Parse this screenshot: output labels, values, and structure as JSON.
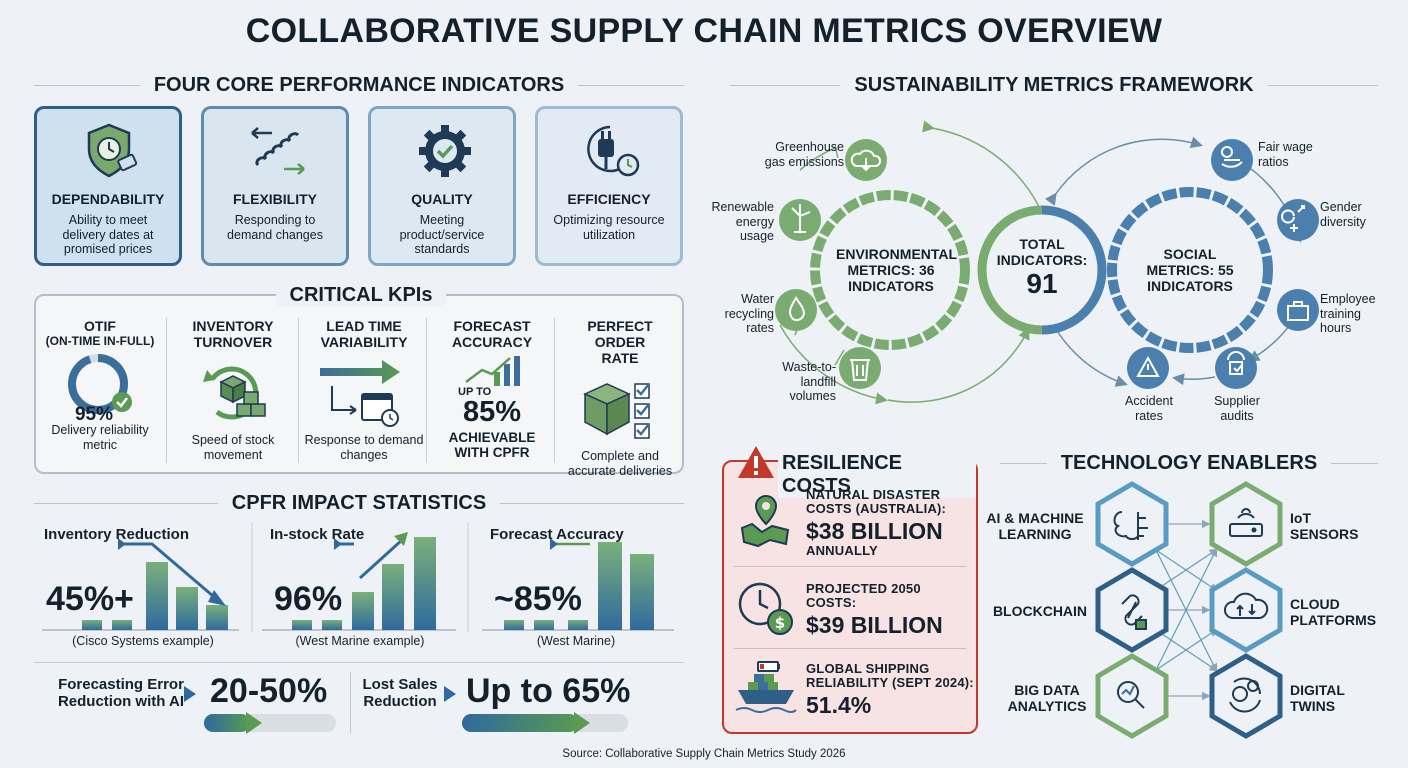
{
  "title": "COLLABORATIVE SUPPLY CHAIN METRICS OVERVIEW",
  "core": {
    "heading": "FOUR CORE PERFORMANCE INDICATORS",
    "cards": [
      {
        "title": "DEPENDABILITY",
        "desc": "Ability to meet delivery dates at promised prices",
        "icon": "shield-clock-icon"
      },
      {
        "title": "FLEXIBILITY",
        "desc": "Responding to demand changes",
        "icon": "spring-arrows-icon"
      },
      {
        "title": "QUALITY",
        "desc": "Meeting product/service standards",
        "icon": "gear-check-icon"
      },
      {
        "title": "EFFICIENCY",
        "desc": "Optimizing resource utilization",
        "icon": "plug-timer-icon"
      }
    ]
  },
  "kpis": {
    "heading": "CRITICAL KPIs",
    "items": [
      {
        "title": "OTIF",
        "subtitle": "(ON-TIME IN-FULL)",
        "value": "95%",
        "desc": "Delivery reliability metric",
        "icon": "donut-check-icon"
      },
      {
        "title": "INVENTORY TURNOVER",
        "desc": "Speed of stock movement",
        "icon": "box-cycle-icon"
      },
      {
        "title": "LEAD TIME VARIABILITY",
        "desc": "Response to demand changes",
        "icon": "arrow-calendar-icon"
      },
      {
        "title": "FORECAST ACCURACY",
        "upto": "UP TO",
        "value": "85%",
        "desc": "ACHIEVABLE WITH CPFR",
        "icon": "rising-chart-icon"
      },
      {
        "title": "PERFECT ORDER RATE",
        "desc": "Complete and accurate deliveries",
        "icon": "box-checklist-icon"
      }
    ]
  },
  "cpfr": {
    "heading": "CPFR IMPACT STATISTICS",
    "panels": [
      {
        "label": "Inventory Reduction",
        "value": "45%+",
        "caption": "(Cisco Systems example)"
      },
      {
        "label": "In-stock Rate",
        "value": "96%",
        "caption": "(West Marine example)"
      },
      {
        "label": "Forecast Accuracy",
        "value": "~85%",
        "caption": "(West Marine)"
      }
    ],
    "bottom": [
      {
        "label": "Forecasting Error Reduction with AI",
        "value": "20-50%",
        "level": 0.35
      },
      {
        "label": "Lost Sales Reduction",
        "value": "Up to 65%",
        "level": 0.7
      }
    ]
  },
  "sustain": {
    "heading": "SUSTAINABILITY METRICS FRAMEWORK",
    "env": "ENVIRONMENTAL METRICS: 36 INDICATORS",
    "total_label": "TOTAL INDICATORS:",
    "total_value": "91",
    "social": "SOCIAL METRICS: 55 INDICATORS",
    "env_items": [
      "Greenhouse gas emissions",
      "Renewable energy usage",
      "Water recycling rates",
      "Waste-to-landfill volumes"
    ],
    "soc_items": [
      "Fair wage ratios",
      "Gender diversity",
      "Employee training hours",
      "Supplier audits",
      "Accident rates"
    ],
    "colors": {
      "env": "#7aac72",
      "soc": "#4a7fae"
    }
  },
  "resilience": {
    "heading": "RESILIENCE COSTS",
    "items": [
      {
        "label": "NATURAL DISASTER COSTS (AUSTRALIA):",
        "value": "$38 BILLION",
        "suffix": "ANNUALLY",
        "icon": "map-pin-icon"
      },
      {
        "label": "PROJECTED 2050 COSTS:",
        "value": "$39 BILLION",
        "icon": "clock-money-icon"
      },
      {
        "label": "GLOBAL SHIPPING RELIABILITY (SEPT 2024):",
        "value": "51.4%",
        "icon": "ship-battery-icon"
      }
    ]
  },
  "tech": {
    "heading": "TECHNOLOGY ENABLERS",
    "left": [
      "AI & MACHINE LEARNING",
      "BLOCKCHAIN",
      "BIG DATA ANALYTICS"
    ],
    "right": [
      "IoT SENSORS",
      "CLOUD PLATFORMS",
      "DIGITAL TWINS"
    ]
  },
  "source": "Source: Collaborative Supply Chain Metrics Study 2026"
}
